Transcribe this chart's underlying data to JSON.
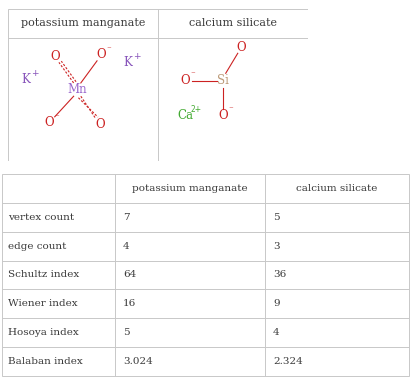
{
  "title1": "potassium manganate",
  "title2": "calcium silicate",
  "table_headers": [
    "",
    "potassium manganate",
    "calcium silicate"
  ],
  "table_rows": [
    [
      "vertex count",
      "7",
      "5"
    ],
    [
      "edge count",
      "4",
      "3"
    ],
    [
      "Schultz index",
      "64",
      "36"
    ],
    [
      "Wiener index",
      "16",
      "9"
    ],
    [
      "Hosoya index",
      "5",
      "4"
    ],
    [
      "Balaban index",
      "3.024",
      "2.324"
    ]
  ],
  "border_color": "#c8c8c8",
  "text_color": "#3a3a3a",
  "bg_color": "#ffffff",
  "mn_color": "#9966cc",
  "o_color": "#cc2222",
  "k_color": "#8855bb",
  "si_color": "#bb9977",
  "ca_color": "#44aa33"
}
